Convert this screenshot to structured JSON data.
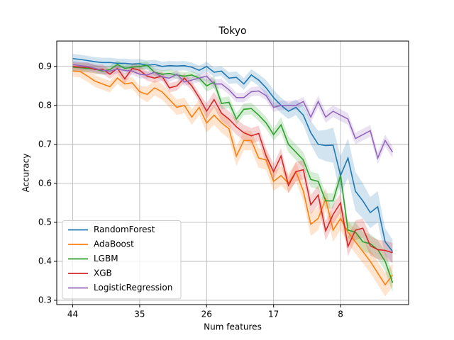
{
  "chart_data": {
    "type": "line",
    "title": "Tokyo",
    "xlabel": "Num features",
    "ylabel": "Accuracy",
    "x": [
      44,
      43,
      42,
      41,
      40,
      39,
      38,
      37,
      36,
      35,
      34,
      33,
      32,
      31,
      30,
      29,
      28,
      27,
      26,
      25,
      24,
      23,
      22,
      21,
      20,
      19,
      18,
      17,
      16,
      15,
      14,
      13,
      12,
      11,
      10,
      9,
      8,
      7,
      6,
      5,
      4,
      3,
      2,
      1
    ],
    "xlim": [
      46.15,
      -1.15
    ],
    "xticks": [
      44,
      35,
      26,
      17,
      8
    ],
    "ylim": [
      0.289,
      0.965
    ],
    "yticks": [
      0.3,
      0.4,
      0.5,
      0.6,
      0.7,
      0.8,
      0.9
    ],
    "grid": true,
    "legend": "lower left",
    "series": [
      {
        "name": "RandomForest",
        "color": "#1f77b4",
        "values": [
          0.92,
          0.918,
          0.915,
          0.912,
          0.91,
          0.91,
          0.908,
          0.908,
          0.906,
          0.907,
          0.903,
          0.905,
          0.9,
          0.902,
          0.901,
          0.902,
          0.898,
          0.89,
          0.9,
          0.885,
          0.888,
          0.87,
          0.872,
          0.855,
          0.878,
          0.865,
          0.845,
          0.82,
          0.8,
          0.785,
          0.795,
          0.775,
          0.73,
          0.7,
          0.697,
          0.698,
          0.62,
          0.665,
          0.58,
          0.555,
          0.525,
          0.54,
          0.45,
          0.425
        ],
        "std": [
          0.012,
          0.012,
          0.012,
          0.012,
          0.012,
          0.012,
          0.012,
          0.012,
          0.012,
          0.012,
          0.012,
          0.012,
          0.012,
          0.012,
          0.012,
          0.012,
          0.012,
          0.012,
          0.012,
          0.012,
          0.012,
          0.015,
          0.015,
          0.015,
          0.015,
          0.015,
          0.02,
          0.02,
          0.02,
          0.02,
          0.02,
          0.025,
          0.03,
          0.035,
          0.04,
          0.045,
          0.05,
          0.05,
          0.05,
          0.045,
          0.04,
          0.04,
          0.035,
          0.03
        ]
      },
      {
        "name": "AdaBoost",
        "color": "#ff7f0e",
        "values": [
          0.888,
          0.887,
          0.875,
          0.862,
          0.855,
          0.848,
          0.87,
          0.855,
          0.858,
          0.835,
          0.828,
          0.845,
          0.835,
          0.815,
          0.795,
          0.8,
          0.77,
          0.795,
          0.755,
          0.775,
          0.755,
          0.74,
          0.67,
          0.71,
          0.71,
          0.665,
          0.66,
          0.605,
          0.62,
          0.6,
          0.63,
          0.58,
          0.495,
          0.51,
          0.56,
          0.48,
          0.51,
          0.475,
          0.45,
          0.425,
          0.4,
          0.37,
          0.34,
          0.365
        ],
        "std": [
          0.015,
          0.015,
          0.015,
          0.015,
          0.015,
          0.015,
          0.015,
          0.015,
          0.015,
          0.015,
          0.02,
          0.02,
          0.02,
          0.02,
          0.02,
          0.02,
          0.02,
          0.02,
          0.025,
          0.025,
          0.025,
          0.025,
          0.025,
          0.025,
          0.025,
          0.025,
          0.025,
          0.025,
          0.025,
          0.025,
          0.025,
          0.025,
          0.03,
          0.03,
          0.03,
          0.03,
          0.03,
          0.03,
          0.03,
          0.03,
          0.03,
          0.03,
          0.03,
          0.03
        ]
      },
      {
        "name": "LGBM",
        "color": "#2ca02c",
        "values": [
          0.898,
          0.897,
          0.895,
          0.893,
          0.888,
          0.892,
          0.905,
          0.895,
          0.898,
          0.9,
          0.903,
          0.885,
          0.88,
          0.882,
          0.878,
          0.875,
          0.878,
          0.87,
          0.85,
          0.86,
          0.805,
          0.808,
          0.765,
          0.79,
          0.792,
          0.775,
          0.755,
          0.725,
          0.75,
          0.7,
          0.68,
          0.66,
          0.61,
          0.605,
          0.555,
          0.555,
          0.62,
          0.48,
          0.475,
          0.45,
          0.445,
          0.43,
          0.4,
          0.345
        ],
        "std": [
          0.01,
          0.01,
          0.01,
          0.01,
          0.01,
          0.01,
          0.01,
          0.01,
          0.01,
          0.01,
          0.01,
          0.01,
          0.01,
          0.01,
          0.01,
          0.01,
          0.01,
          0.01,
          0.015,
          0.015,
          0.015,
          0.015,
          0.015,
          0.015,
          0.015,
          0.015,
          0.015,
          0.015,
          0.02,
          0.02,
          0.02,
          0.02,
          0.02,
          0.02,
          0.02,
          0.02,
          0.02,
          0.02,
          0.025,
          0.025,
          0.025,
          0.025,
          0.025,
          0.025
        ]
      },
      {
        "name": "XGB",
        "color": "#d62728",
        "values": [
          0.9,
          0.898,
          0.898,
          0.892,
          0.893,
          0.88,
          0.895,
          0.868,
          0.895,
          0.89,
          0.875,
          0.87,
          0.875,
          0.845,
          0.85,
          0.87,
          0.85,
          0.82,
          0.785,
          0.815,
          0.78,
          0.765,
          0.745,
          0.73,
          0.722,
          0.728,
          0.67,
          0.63,
          0.67,
          0.595,
          0.63,
          0.635,
          0.545,
          0.57,
          0.478,
          0.52,
          0.55,
          0.438,
          0.48,
          0.485,
          0.44,
          0.43,
          0.428,
          0.422
        ],
        "std": [
          0.012,
          0.012,
          0.012,
          0.012,
          0.012,
          0.012,
          0.012,
          0.012,
          0.012,
          0.012,
          0.012,
          0.012,
          0.012,
          0.012,
          0.012,
          0.012,
          0.012,
          0.012,
          0.02,
          0.02,
          0.02,
          0.02,
          0.02,
          0.02,
          0.02,
          0.02,
          0.02,
          0.02,
          0.02,
          0.02,
          0.025,
          0.025,
          0.025,
          0.025,
          0.025,
          0.025,
          0.025,
          0.025,
          0.025,
          0.025,
          0.025,
          0.025,
          0.025,
          0.025
        ]
      },
      {
        "name": "LogisticRegression",
        "color": "#9467bd",
        "values": [
          0.905,
          0.902,
          0.9,
          0.895,
          0.89,
          0.888,
          0.893,
          0.89,
          0.888,
          0.88,
          0.878,
          0.885,
          0.873,
          0.87,
          0.88,
          0.86,
          0.865,
          0.87,
          0.875,
          0.855,
          0.855,
          0.84,
          0.82,
          0.82,
          0.835,
          0.837,
          0.825,
          0.795,
          0.8,
          0.8,
          0.8,
          0.81,
          0.77,
          0.81,
          0.77,
          0.785,
          0.775,
          0.765,
          0.715,
          0.725,
          0.735,
          0.665,
          0.71,
          0.68
        ],
        "std": [
          0.01,
          0.01,
          0.01,
          0.01,
          0.01,
          0.01,
          0.01,
          0.01,
          0.01,
          0.01,
          0.01,
          0.01,
          0.01,
          0.01,
          0.01,
          0.01,
          0.01,
          0.01,
          0.012,
          0.012,
          0.012,
          0.012,
          0.012,
          0.012,
          0.012,
          0.012,
          0.012,
          0.012,
          0.012,
          0.012,
          0.012,
          0.012,
          0.015,
          0.015,
          0.015,
          0.015,
          0.015,
          0.015,
          0.015,
          0.015,
          0.015,
          0.015,
          0.015,
          0.015
        ]
      }
    ]
  }
}
